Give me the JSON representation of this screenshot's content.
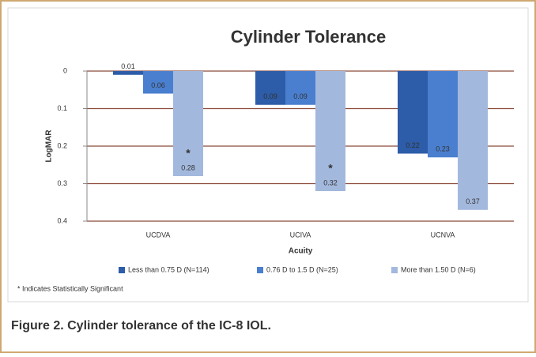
{
  "chart_data": {
    "type": "bar",
    "title": "Cylinder Tolerance",
    "y_label": "LogMAR",
    "x_label": "Acuity",
    "categories": [
      "UCDVA",
      "UCIVA",
      "UCNVA"
    ],
    "series": [
      {
        "name": "Less than 0.75 D (N=114)",
        "color": "#2d5ca8",
        "values": [
          0.01,
          0.09,
          0.22
        ]
      },
      {
        "name": "0.76 D to 1.5 D (N=25)",
        "color": "#4a7fcf",
        "values": [
          0.06,
          0.09,
          0.23
        ]
      },
      {
        "name": "More than 1.50 D (N=6)",
        "color": "#a3b8dd",
        "values": [
          0.28,
          0.32,
          0.37
        ]
      }
    ],
    "significance": [
      "*",
      "*",
      null
    ],
    "ylim": [
      0,
      0.4
    ],
    "y_reversed": true,
    "yticks": [
      0,
      0.1,
      0.2,
      0.3,
      0.4
    ],
    "grid": true,
    "legend": "bottom",
    "footnote": "* Indicates Statistically Significant"
  },
  "caption": "Figure 2.  Cylinder tolerance of the IC-8 IOL."
}
